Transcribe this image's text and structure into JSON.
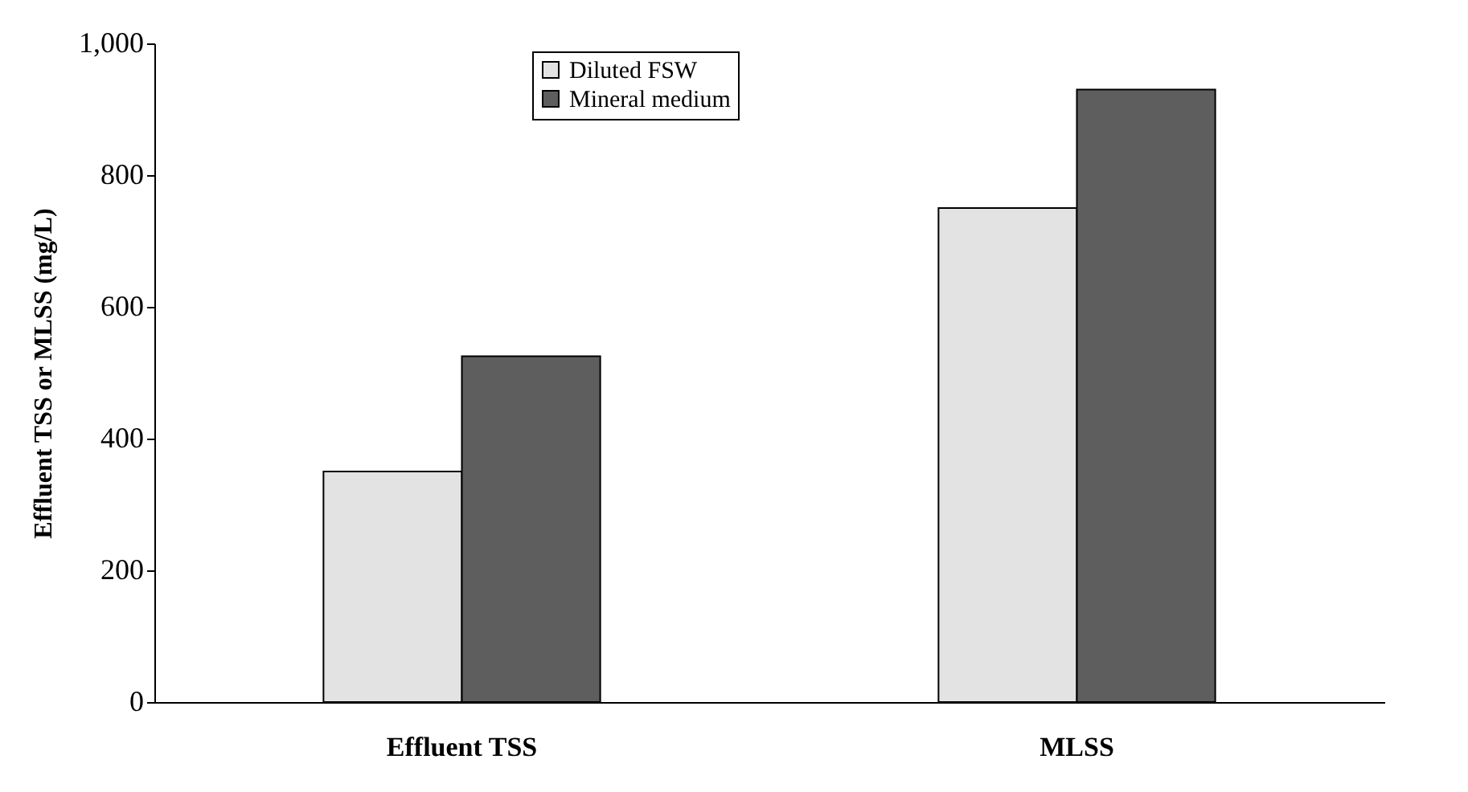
{
  "chart_data": {
    "type": "bar",
    "ylabel": "Effluent TSS or MLSS (mg/L)",
    "categories": [
      "Effluent TSS",
      "MLSS"
    ],
    "series": [
      {
        "name": "Diluted FSW",
        "color": "#e3e3e3",
        "values": [
          350,
          750
        ]
      },
      {
        "name": "Mineral medium",
        "color": "#5e5e5e",
        "values": [
          525,
          930
        ]
      }
    ],
    "ylim": [
      0,
      1000
    ],
    "yticks": [
      0,
      {
        "value": 200,
        "label": "200"
      },
      {
        "value": 400,
        "label": "400"
      },
      {
        "value": 600,
        "label": "600"
      },
      {
        "value": 800,
        "label": "800"
      },
      {
        "value": 1000,
        "label": "1,000"
      }
    ],
    "grid": false,
    "legend": "top"
  }
}
